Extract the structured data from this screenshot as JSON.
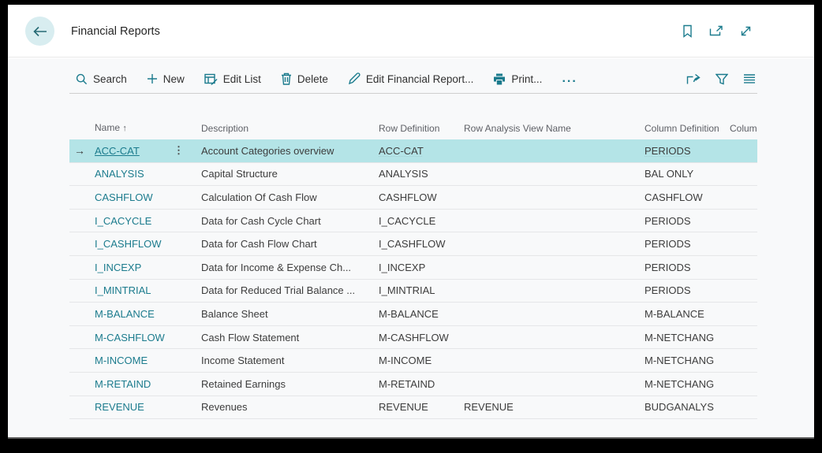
{
  "colors": {
    "accent": "#1b7b8d",
    "selection_background": "#b4e4e7",
    "back_button_background": "#d8edf0"
  },
  "title_bar": {
    "title": "Financial Reports",
    "back_icon": "arrow-left-icon",
    "icons": [
      "bookmark-icon",
      "open-in-new-window-icon",
      "expand-icon"
    ]
  },
  "toolbar": {
    "items": [
      {
        "icon": "search-icon",
        "label": "Search"
      },
      {
        "icon": "plus-icon",
        "label": "New"
      },
      {
        "icon": "edit-list-icon",
        "label": "Edit List"
      },
      {
        "icon": "delete-icon",
        "label": "Delete"
      },
      {
        "icon": "edit-icon",
        "label": "Edit Financial Report..."
      },
      {
        "icon": "print-icon",
        "label": "Print..."
      },
      {
        "icon": "more-options-icon",
        "label": "..."
      }
    ],
    "right_icons": [
      "share-icon",
      "filter-icon",
      "choose-columns-icon"
    ]
  },
  "table": {
    "columns": {
      "name": "Name",
      "name_sort_indicator": "↑",
      "description": "Description",
      "row_definition": "Row Definition",
      "row_analysis_view_name": "Row Analysis View Name",
      "column_definition": "Column Definition",
      "column_truncated": "Colum"
    },
    "selected_row_marker": "→",
    "row_options_glyph": "⋮",
    "rows": [
      {
        "selected": true,
        "name": "ACC-CAT",
        "description": "Account Categories overview",
        "row_definition": "ACC-CAT",
        "row_analysis_view_name": "",
        "column_definition": "PERIODS"
      },
      {
        "selected": false,
        "name": "ANALYSIS",
        "description": "Capital Structure",
        "row_definition": "ANALYSIS",
        "row_analysis_view_name": "",
        "column_definition": "BAL ONLY"
      },
      {
        "selected": false,
        "name": "CASHFLOW",
        "description": "Calculation Of Cash Flow",
        "row_definition": "CASHFLOW",
        "row_analysis_view_name": "",
        "column_definition": "CASHFLOW"
      },
      {
        "selected": false,
        "name": "I_CACYCLE",
        "description": "Data for Cash Cycle Chart",
        "row_definition": "I_CACYCLE",
        "row_analysis_view_name": "",
        "column_definition": "PERIODS"
      },
      {
        "selected": false,
        "name": "I_CASHFLOW",
        "description": "Data for Cash Flow Chart",
        "row_definition": "I_CASHFLOW",
        "row_analysis_view_name": "",
        "column_definition": "PERIODS"
      },
      {
        "selected": false,
        "name": "I_INCEXP",
        "description": "Data for Income & Expense Ch...",
        "row_definition": "I_INCEXP",
        "row_analysis_view_name": "",
        "column_definition": "PERIODS"
      },
      {
        "selected": false,
        "name": "I_MINTRIAL",
        "description": "Data for Reduced Trial Balance ...",
        "row_definition": "I_MINTRIAL",
        "row_analysis_view_name": "",
        "column_definition": "PERIODS"
      },
      {
        "selected": false,
        "name": "M-BALANCE",
        "description": "Balance Sheet",
        "row_definition": "M-BALANCE",
        "row_analysis_view_name": "",
        "column_definition": "M-BALANCE"
      },
      {
        "selected": false,
        "name": "M-CASHFLOW",
        "description": "Cash Flow Statement",
        "row_definition": "M-CASHFLOW",
        "row_analysis_view_name": "",
        "column_definition": "M-NETCHANG"
      },
      {
        "selected": false,
        "name": "M-INCOME",
        "description": "Income Statement",
        "row_definition": "M-INCOME",
        "row_analysis_view_name": "",
        "column_definition": "M-NETCHANG"
      },
      {
        "selected": false,
        "name": "M-RETAIND",
        "description": "Retained Earnings",
        "row_definition": "M-RETAIND",
        "row_analysis_view_name": "",
        "column_definition": "M-NETCHANG"
      },
      {
        "selected": false,
        "name": "REVENUE",
        "description": "Revenues",
        "row_definition": "REVENUE",
        "row_analysis_view_name": "REVENUE",
        "column_definition": "BUDGANALYS"
      }
    ]
  }
}
